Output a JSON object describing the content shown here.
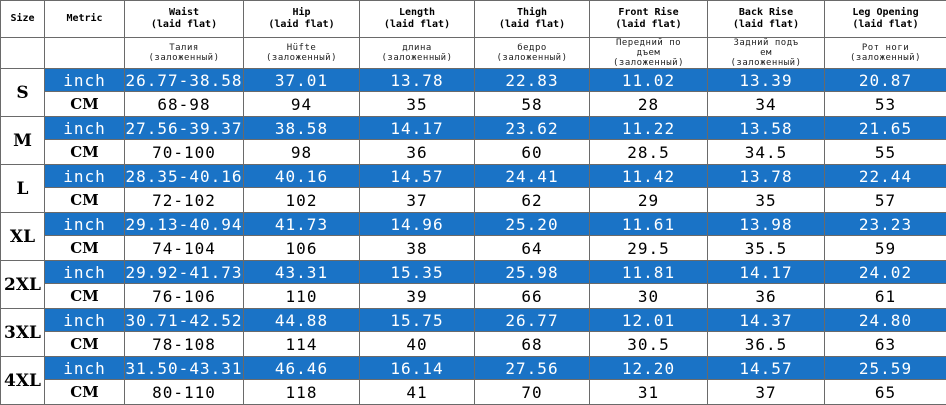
{
  "headers": {
    "size": "Size",
    "metric": "Metric",
    "columns": [
      {
        "en1": "Waist",
        "en2": "(laid flat)",
        "ru1": "Талия",
        "ru2": "(заложенный)",
        "ru3": ""
      },
      {
        "en1": "Hip",
        "en2": "(laid flat)",
        "ru1": "Hüfte",
        "ru2": "(заложенный)",
        "ru3": ""
      },
      {
        "en1": "Length",
        "en2": "(laid flat)",
        "ru1": "длина",
        "ru2": "(заложенный)",
        "ru3": ""
      },
      {
        "en1": "Thigh",
        "en2": "(laid flat)",
        "ru1": "бедро",
        "ru2": "(заложенный)",
        "ru3": ""
      },
      {
        "en1": "Front Rise",
        "en2": "(laid flat)",
        "ru1": "Передний по",
        "ru2": "дъем",
        "ru3": "(заложенный)"
      },
      {
        "en1": "Back Rise",
        "en2": "(laid flat)",
        "ru1": "Задний подъ",
        "ru2": "ем",
        "ru3": "(заложенный)"
      },
      {
        "en1": "Leg Opening",
        "en2": "(laid flat)",
        "ru1": "Рот ноги",
        "ru2": "(заложенный)",
        "ru3": ""
      }
    ]
  },
  "colors": {
    "inch_row_bg": "#1a73c6",
    "inch_row_text": "#ffffff",
    "border": "#6a6a6a"
  },
  "sizes": [
    {
      "label": "S",
      "inch": {
        "unit": "inch",
        "values": [
          "26.77-38.58",
          "37.01",
          "13.78",
          "22.83",
          "11.02",
          "13.39",
          "20.87"
        ]
      },
      "cm": {
        "unit": "CM",
        "values": [
          "68-98",
          "94",
          "35",
          "58",
          "28",
          "34",
          "53"
        ]
      }
    },
    {
      "label": "M",
      "inch": {
        "unit": "inch",
        "values": [
          "27.56-39.37",
          "38.58",
          "14.17",
          "23.62",
          "11.22",
          "13.58",
          "21.65"
        ]
      },
      "cm": {
        "unit": "CM",
        "values": [
          "70-100",
          "98",
          "36",
          "60",
          "28.5",
          "34.5",
          "55"
        ]
      }
    },
    {
      "label": "L",
      "inch": {
        "unit": "inch",
        "values": [
          "28.35-40.16",
          "40.16",
          "14.57",
          "24.41",
          "11.42",
          "13.78",
          "22.44"
        ]
      },
      "cm": {
        "unit": "CM",
        "values": [
          "72-102",
          "102",
          "37",
          "62",
          "29",
          "35",
          "57"
        ]
      }
    },
    {
      "label": "XL",
      "inch": {
        "unit": "inch",
        "values": [
          "29.13-40.94",
          "41.73",
          "14.96",
          "25.20",
          "11.61",
          "13.98",
          "23.23"
        ]
      },
      "cm": {
        "unit": "CM",
        "values": [
          "74-104",
          "106",
          "38",
          "64",
          "29.5",
          "35.5",
          "59"
        ]
      }
    },
    {
      "label": "2XL",
      "inch": {
        "unit": "inch",
        "values": [
          "29.92-41.73",
          "43.31",
          "15.35",
          "25.98",
          "11.81",
          "14.17",
          "24.02"
        ]
      },
      "cm": {
        "unit": "CM",
        "values": [
          "76-106",
          "110",
          "39",
          "66",
          "30",
          "36",
          "61"
        ]
      }
    },
    {
      "label": "3XL",
      "inch": {
        "unit": "inch",
        "values": [
          "30.71-42.52",
          "44.88",
          "15.75",
          "26.77",
          "12.01",
          "14.37",
          "24.80"
        ]
      },
      "cm": {
        "unit": "CM",
        "values": [
          "78-108",
          "114",
          "40",
          "68",
          "30.5",
          "36.5",
          "63"
        ]
      }
    },
    {
      "label": "4XL",
      "inch": {
        "unit": "inch",
        "values": [
          "31.50-43.31",
          "46.46",
          "16.14",
          "27.56",
          "12.20",
          "14.57",
          "25.59"
        ]
      },
      "cm": {
        "unit": "CM",
        "values": [
          "80-110",
          "118",
          "41",
          "70",
          "31",
          "37",
          "65"
        ]
      }
    }
  ]
}
